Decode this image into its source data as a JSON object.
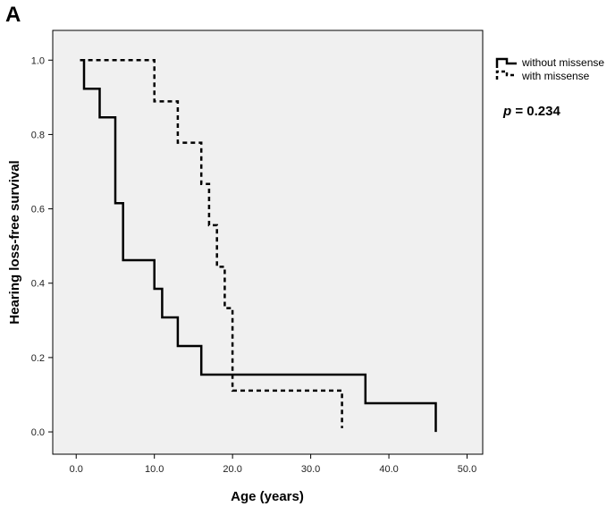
{
  "panel_label": "A",
  "chart_data": {
    "type": "line",
    "subtype": "kaplan-meier-step",
    "xlabel": "Age (years)",
    "ylabel": "Hearing loss-free survival",
    "xlim": [
      -3,
      52
    ],
    "ylim": [
      -0.06,
      1.08
    ],
    "xticks": [
      0,
      10,
      20,
      30,
      40,
      50
    ],
    "xtick_labels": [
      "0.0",
      "10.0",
      "20.0",
      "30.0",
      "40.0",
      "50.0"
    ],
    "yticks": [
      0.0,
      0.2,
      0.4,
      0.6,
      0.8,
      1.0
    ],
    "ytick_labels": [
      "0.0",
      "0.2",
      "0.4",
      "0.6",
      "0.8",
      "1.0"
    ],
    "grid": false,
    "plot_background": "#f0f0f0",
    "legend_position": "top-right, outside plot",
    "series": [
      {
        "name": "without missense",
        "line_style": "solid",
        "color": "#000000",
        "x": [
          0.5,
          1,
          1,
          3,
          3,
          5,
          5,
          6,
          6,
          10,
          10,
          11,
          11,
          13,
          13,
          16,
          16,
          37,
          37,
          46,
          46
        ],
        "y": [
          1.0,
          1.0,
          0.923,
          0.923,
          0.846,
          0.846,
          0.615,
          0.615,
          0.462,
          0.462,
          0.385,
          0.385,
          0.308,
          0.308,
          0.231,
          0.231,
          0.154,
          0.154,
          0.077,
          0.077,
          0.0
        ]
      },
      {
        "name": "with missense",
        "line_style": "dashed",
        "color": "#000000",
        "x": [
          0.5,
          10,
          10,
          13,
          13,
          16,
          16,
          17,
          17,
          18,
          18,
          19,
          19,
          20,
          20,
          34,
          34
        ],
        "y": [
          1.0,
          1.0,
          0.889,
          0.889,
          0.778,
          0.778,
          0.667,
          0.667,
          0.556,
          0.556,
          0.444,
          0.444,
          0.333,
          0.333,
          0.111,
          0.111,
          0.01
        ]
      }
    ],
    "annotations": [
      {
        "prefix": "p",
        "text": " = 0.234"
      }
    ]
  }
}
